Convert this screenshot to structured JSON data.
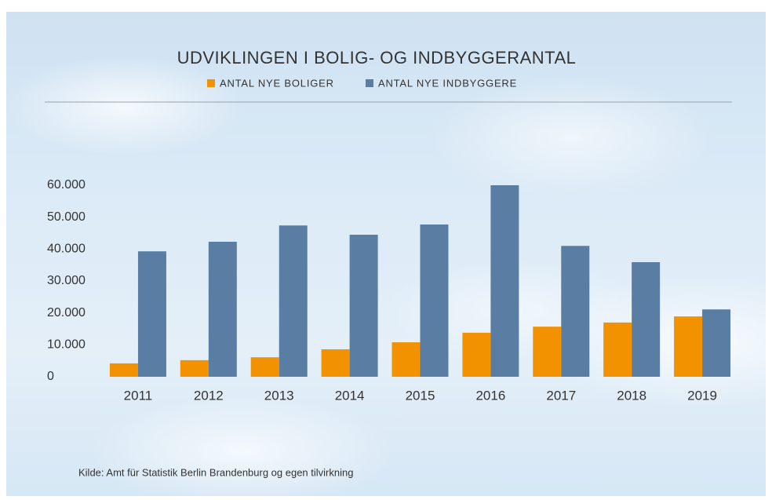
{
  "chart_data": {
    "type": "bar",
    "title": "UDVIKLINGEN I BOLIG- OG INDBYGGERANTAL",
    "source": "Kilde:  Amt für Statistik Berlin Brandenburg og egen tilvirkning",
    "categories": [
      "2011",
      "2012",
      "2013",
      "2014",
      "2015",
      "2016",
      "2017",
      "2018",
      "2019"
    ],
    "series": [
      {
        "name": "ANTAL NYE BOLIGER",
        "color": "#f39200",
        "values": [
          4200,
          5200,
          6100,
          8600,
          10800,
          13800,
          15700,
          17000,
          18900
        ]
      },
      {
        "name": "ANTAL NYE INDBYGGERE",
        "color": "#5a7ea3",
        "values": [
          39300,
          42300,
          47400,
          44500,
          47700,
          60000,
          41000,
          35900,
          21100
        ]
      }
    ],
    "ylim": [
      0,
      60000
    ],
    "yticks": [
      0,
      {
        "value": 10000,
        "label": "10.000"
      },
      {
        "value": 20000,
        "label": "20.000"
      },
      {
        "value": 30000,
        "label": "30.000"
      },
      {
        "value": 40000,
        "label": "40.000"
      },
      {
        "value": 50000,
        "label": "50.000"
      },
      {
        "value": 60000,
        "label": "60.000"
      }
    ],
    "legend": "top"
  }
}
